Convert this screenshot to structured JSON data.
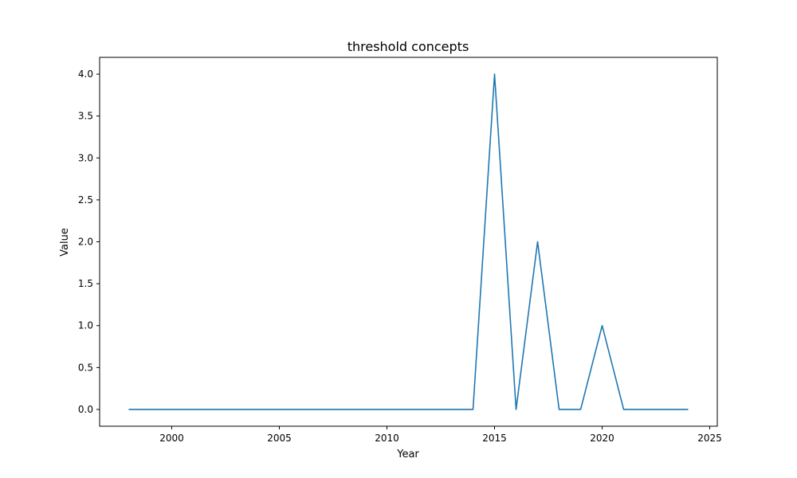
{
  "chart_data": {
    "type": "line",
    "title": "threshold concepts",
    "xlabel": "Year",
    "ylabel": "Value",
    "xlim": [
      1996.65,
      2025.35
    ],
    "ylim": [
      -0.2,
      4.2
    ],
    "xticks": [
      2000,
      2005,
      2010,
      2015,
      2020,
      2025
    ],
    "yticks": [
      0.0,
      0.5,
      1.0,
      1.5,
      2.0,
      2.5,
      3.0,
      3.5,
      4.0
    ],
    "grid": false,
    "legend": "none",
    "series": [
      {
        "color": "#1f77b4",
        "x": [
          1998,
          1999,
          2000,
          2001,
          2002,
          2003,
          2004,
          2005,
          2006,
          2007,
          2008,
          2009,
          2010,
          2011,
          2012,
          2013,
          2014,
          2015,
          2016,
          2017,
          2018,
          2019,
          2020,
          2021,
          2022,
          2023,
          2024
        ],
        "y": [
          0,
          0,
          0,
          0,
          0,
          0,
          0,
          0,
          0,
          0,
          0,
          0,
          0,
          0,
          0,
          0,
          0,
          4,
          0,
          2,
          0,
          0,
          1,
          0,
          0,
          0,
          0
        ]
      }
    ]
  }
}
